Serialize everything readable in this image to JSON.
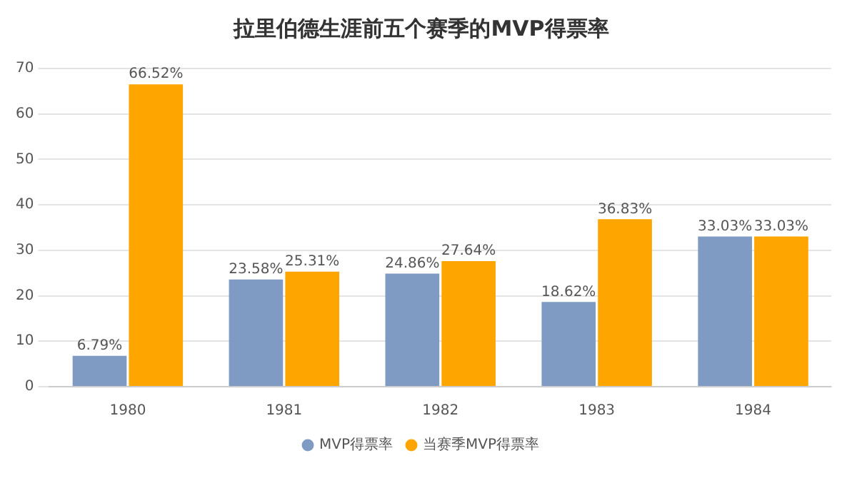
{
  "chart_data": {
    "type": "bar",
    "title": "拉里伯德生涯前五个赛季的MVP得票率",
    "categories": [
      "1980",
      "1981",
      "1982",
      "1983",
      "1984"
    ],
    "series": [
      {
        "name": "MVP得票率",
        "color": "#7f9bc4",
        "values": [
          6.79,
          23.58,
          24.86,
          18.62,
          33.03
        ]
      },
      {
        "name": "当赛季MVP得票率",
        "color": "#ffa500",
        "values": [
          66.52,
          25.31,
          27.64,
          36.83,
          33.03
        ]
      }
    ],
    "value_labels": [
      [
        "6.79%",
        "23.58%",
        "24.86%",
        "18.62%",
        "33.03%"
      ],
      [
        "66.52%",
        "25.31%",
        "27.64%",
        "36.83%",
        "33.03%"
      ]
    ],
    "ylim": [
      0,
      70
    ],
    "yticks": [
      0,
      10,
      20,
      30,
      40,
      50,
      60,
      70
    ],
    "grid": "y",
    "legend": "bottom"
  }
}
